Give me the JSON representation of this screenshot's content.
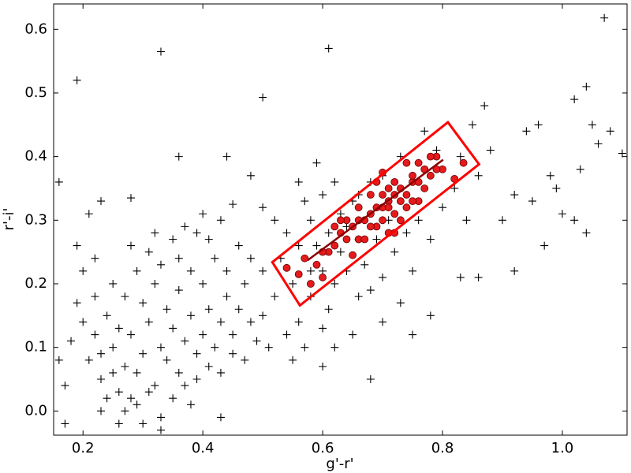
{
  "chart_data": {
    "type": "scatter",
    "x_label": "g'-r'",
    "y_label": "r'-i'",
    "xlim": [
      0.151,
      1.108
    ],
    "ylim": [
      -0.038,
      0.64
    ],
    "xticks": [
      0.2,
      0.4,
      0.6,
      0.8,
      {
        "value": 1,
        "label": "1.0"
      }
    ],
    "yticks": [
      {
        "value": 0,
        "label": "0.0"
      },
      0.1,
      0.2,
      0.3,
      0.4,
      0.5,
      0.6
    ],
    "grid": false,
    "series": [
      {
        "marker": "plus",
        "color": "#000000",
        "x": [
          0.21,
          0.22,
          0.23,
          0.24,
          0.25,
          0.26,
          0.27,
          0.28,
          0.29,
          0.3,
          0.31,
          0.32,
          0.33,
          0.34,
          0.35,
          0.36,
          0.37,
          0.38,
          0.39,
          0.4,
          0.41,
          0.42,
          0.43,
          0.44,
          0.45,
          0.22,
          0.24,
          0.26,
          0.28,
          0.3,
          0.32,
          0.34,
          0.36,
          0.38,
          0.4,
          0.42,
          0.44,
          0.46,
          0.47,
          0.48,
          0.25,
          0.27,
          0.29,
          0.31,
          0.33,
          0.35,
          0.37,
          0.39,
          0.41,
          0.43,
          0.2,
          0.19,
          0.18,
          0.2,
          0.23,
          0.25,
          0.27,
          0.29,
          0.31,
          0.35,
          0.37,
          0.39,
          0.41,
          0.43,
          0.45,
          0.47,
          0.49,
          0.5,
          0.51,
          0.52,
          0.33,
          0.3,
          0.26,
          0.23,
          0.38,
          0.22,
          0.28,
          0.32,
          0.36,
          0.4,
          0.46,
          0.48,
          0.5,
          0.53,
          0.55,
          0.54,
          0.52,
          0.5,
          0.56,
          0.57,
          0.58,
          0.59,
          0.6,
          0.58,
          0.56,
          0.57,
          0.54,
          0.55,
          0.61,
          0.62,
          0.63,
          0.64,
          0.65,
          0.66,
          0.67,
          0.68,
          0.7,
          0.72,
          0.74,
          0.76,
          0.78,
          0.8,
          0.82,
          0.84,
          0.86,
          0.83,
          0.79,
          0.77,
          0.73,
          0.7,
          0.68,
          0.66,
          0.63,
          0.61,
          0.6,
          0.62,
          0.64,
          0.66,
          0.7,
          0.73,
          0.75,
          0.71,
          0.69,
          0.65,
          0.62,
          0.6,
          0.58,
          0.56,
          0.59,
          0.19,
          0.33,
          0.61,
          0.5,
          1.07,
          1.04,
          1.02,
          1.05,
          1.08,
          1.03,
          1.06,
          1.1,
          0.96,
          0.94,
          0.85,
          0.87,
          0.88,
          0.92,
          0.16,
          0.17,
          0.16,
          0.17,
          0.19,
          0.21,
          0.23,
          0.28,
          0.36,
          0.44,
          0.48,
          0.45,
          0.43,
          0.33,
          0.6,
          0.68,
          0.92,
          0.86,
          0.83,
          0.78,
          0.75,
          1,
          1.04,
          1.02,
          0.97,
          0.95,
          0.99,
          0.9,
          0.98
        ],
        "values": [
          0.08,
          0.12,
          0.05,
          0.15,
          0.1,
          0.03,
          0.07,
          0.12,
          0.06,
          0.09,
          0.14,
          0.04,
          0.1,
          0.08,
          0.13,
          0.06,
          0.11,
          0.15,
          0.09,
          0.12,
          0.16,
          0.1,
          0.14,
          0.18,
          0.12,
          0.18,
          0.02,
          0.13,
          0.02,
          0.17,
          0.2,
          0.16,
          0.19,
          0.22,
          0.2,
          0.24,
          0.22,
          0.16,
          0.2,
          0.14,
          0.2,
          0.18,
          0.22,
          0.25,
          0.23,
          0.27,
          0.29,
          0.28,
          0.27,
          0.3,
          0.22,
          0.17,
          0.11,
          0.14,
          0.09,
          0.06,
          0,
          0.01,
          0.03,
          0.02,
          0.04,
          0.05,
          0.07,
          0.06,
          0.09,
          0.08,
          0.11,
          0.15,
          0.1,
          0.18,
          -0.01,
          -0.02,
          -0.02,
          0,
          0.01,
          0.24,
          0.26,
          0.28,
          0.24,
          0.31,
          0.26,
          0.24,
          0.22,
          0.24,
          0.2,
          0.28,
          0.3,
          0.32,
          0.36,
          0.33,
          0.3,
          0.26,
          0.22,
          0.18,
          0.14,
          0.1,
          0.12,
          0.08,
          0.16,
          0.2,
          0.25,
          0.29,
          0.33,
          0.27,
          0.23,
          0.19,
          0.21,
          0.25,
          0.28,
          0.3,
          0.27,
          0.32,
          0.35,
          0.3,
          0.37,
          0.4,
          0.41,
          0.44,
          0.4,
          0.37,
          0.36,
          0.34,
          0.31,
          0.28,
          0.34,
          0.36,
          0.22,
          0.18,
          0.14,
          0.17,
          0.22,
          0.3,
          0.27,
          0.12,
          0.1,
          0.13,
          0.22,
          0.26,
          0.39,
          0.52,
          0.565,
          0.57,
          0.493,
          0.618,
          0.51,
          0.49,
          0.45,
          0.44,
          0.38,
          0.42,
          0.405,
          0.45,
          0.44,
          0.45,
          0.48,
          0.41,
          0.34,
          0.36,
          0.04,
          0.08,
          -0.02,
          0.26,
          0.31,
          0.33,
          0.335,
          0.4,
          0.4,
          0.37,
          0.325,
          -0.01,
          -0.03,
          0.07,
          0.05,
          0.22,
          0.21,
          0.21,
          0.15,
          0.12,
          0.31,
          0.28,
          0.3,
          0.26,
          0.33,
          0.35,
          0.3,
          0.37
        ]
      },
      {
        "marker": "circle",
        "color": "#e41a1c",
        "x": [
          0.54,
          0.56,
          0.57,
          0.59,
          0.6,
          0.61,
          0.62,
          0.63,
          0.64,
          0.65,
          0.66,
          0.67,
          0.68,
          0.69,
          0.7,
          0.71,
          0.72,
          0.73,
          0.74,
          0.75,
          0.76,
          0.77,
          0.78,
          0.79,
          0.8,
          0.82,
          0.835,
          0.65,
          0.66,
          0.67,
          0.68,
          0.69,
          0.7,
          0.71,
          0.72,
          0.73,
          0.74,
          0.75,
          0.76,
          0.77,
          0.78,
          0.79,
          0.7,
          0.72,
          0.71,
          0.73,
          0.74,
          0.76,
          0.64,
          0.63,
          0.62,
          0.66,
          0.68,
          0.69,
          0.7,
          0.71,
          0.72,
          0.58,
          0.6,
          0.75
        ],
        "values": [
          0.225,
          0.215,
          0.24,
          0.23,
          0.21,
          0.25,
          0.26,
          0.28,
          0.3,
          0.29,
          0.27,
          0.3,
          0.31,
          0.29,
          0.32,
          0.33,
          0.31,
          0.35,
          0.34,
          0.36,
          0.33,
          0.38,
          0.37,
          0.4,
          0.38,
          0.365,
          0.39,
          0.245,
          0.32,
          0.27,
          0.34,
          0.36,
          0.3,
          0.28,
          0.34,
          0.3,
          0.32,
          0.37,
          0.36,
          0.35,
          0.4,
          0.38,
          0.375,
          0.36,
          0.35,
          0.33,
          0.39,
          0.39,
          0.27,
          0.3,
          0.29,
          0.3,
          0.29,
          0.32,
          0.34,
          0.32,
          0.28,
          0.2,
          0.25,
          0.33
        ]
      }
    ],
    "lines": [
      {
        "color": "#8b0000",
        "x": [
          0.575,
          0.801
        ],
        "values": [
          0.237,
          0.395
        ]
      }
    ],
    "shapes": [
      {
        "color": "#ff0000",
        "x": [
          0.516,
          0.809,
          0.861,
          0.562
        ],
        "values": [
          0.234,
          0.454,
          0.388,
          0.166
        ]
      }
    ]
  }
}
